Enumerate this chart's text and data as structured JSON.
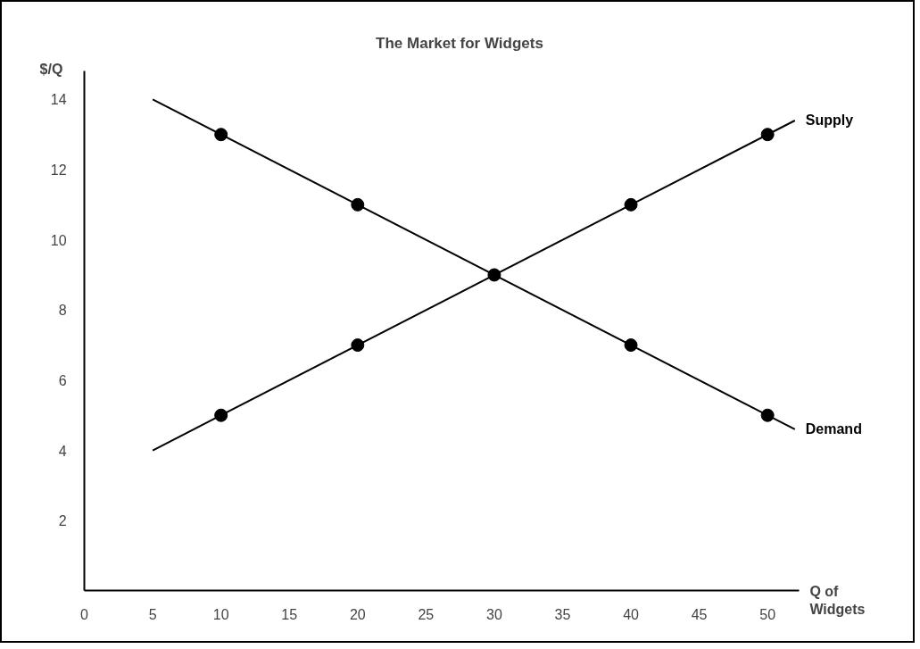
{
  "chart_data": {
    "type": "line",
    "title": "The Market for Widgets",
    "xlabel": "Q of Widgets",
    "ylabel": "$/Q",
    "xlim": [
      0,
      52.3
    ],
    "ylim": [
      0,
      14.8
    ],
    "xticks": [
      0,
      5,
      10,
      15,
      20,
      25,
      30,
      35,
      40,
      45,
      50
    ],
    "yticks": [
      2,
      4,
      6,
      8,
      10,
      12,
      14
    ],
    "grid": false,
    "legend": false,
    "marker": "none",
    "line_style": "solid",
    "series": [
      {
        "name": "Supply",
        "color": "#000000",
        "x": [
          5,
          52
        ],
        "values": [
          4,
          13.4
        ]
      },
      {
        "name": "Demand",
        "color": "#000000",
        "x": [
          5,
          52
        ],
        "values": [
          14,
          4.6
        ]
      },
      {
        "type": "scatter",
        "marker": "circle",
        "color": "#000000",
        "x": [
          10,
          20,
          30,
          40,
          50
        ],
        "values": [
          5,
          7,
          9,
          11,
          13
        ]
      },
      {
        "type": "scatter",
        "marker": "circle",
        "color": "#000000",
        "x": [
          10,
          20,
          40,
          50
        ],
        "values": [
          13,
          11,
          7,
          5
        ]
      }
    ]
  }
}
